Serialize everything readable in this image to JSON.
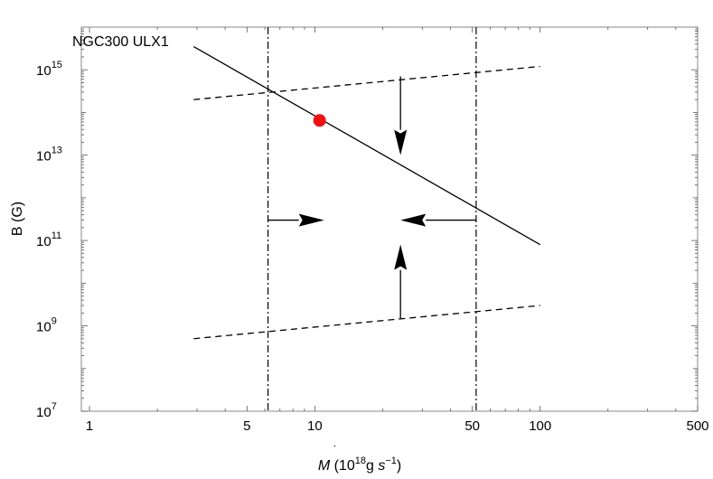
{
  "chart_data": {
    "type": "line",
    "title": "",
    "annotation": "NGC300 ULX1",
    "xlabel": {
      "prefix": "M",
      "open_paren": " (10",
      "exponent": "18",
      "unit_g": "g ",
      "unit_s": "s",
      "unit_exp": "−1",
      "close_paren": ")"
    },
    "ylabel": "B (G)",
    "x_scale": "log",
    "y_scale": "log",
    "xlim": [
      0.92,
      500
    ],
    "ylim": [
      10000000.0,
      1e+16
    ],
    "x_ticks": [
      {
        "value": 1,
        "label": "1"
      },
      {
        "value": 5,
        "label": "5"
      },
      {
        "value": 10,
        "label": "10"
      },
      {
        "value": 50,
        "label": "50"
      },
      {
        "value": 100,
        "label": "100"
      },
      {
        "value": 500,
        "label": "500"
      }
    ],
    "y_ticks": [
      {
        "value": 10000000.0,
        "mant": "10",
        "exp": "7"
      },
      {
        "value": 1000000000.0,
        "mant": "10",
        "exp": "9"
      },
      {
        "value": 100000000000.0,
        "mant": "10",
        "exp": "11"
      },
      {
        "value": 10000000000000.0,
        "mant": "10",
        "exp": "13"
      },
      {
        "value": 1000000000000000.0,
        "mant": "10",
        "exp": "15"
      }
    ],
    "grid": false,
    "series": [
      {
        "style": "solid",
        "x": [
          2.9,
          100
        ],
        "y": [
          3500000000000000.0,
          80000000000.0
        ]
      },
      {
        "style": "dashed",
        "x": [
          2.9,
          100
        ],
        "y": [
          200000000000000.0,
          1200000000000000.0
        ]
      },
      {
        "style": "dashed",
        "x": [
          2.9,
          100
        ],
        "y": [
          500000000.0,
          3000000000.0
        ]
      }
    ],
    "vertical_lines": [
      {
        "style": "dashdot",
        "x": 6.2
      },
      {
        "style": "dashdot",
        "x": 52
      }
    ],
    "point": {
      "x": 10.5,
      "y": 65000000000000.0,
      "color": "#ee1111"
    },
    "arrows": [
      {
        "direction": "down",
        "x": 24,
        "y_from": 700000000000000.0,
        "y_to": 10000000000000.0
      },
      {
        "direction": "up",
        "x": 24,
        "y_from": 1500000000.0,
        "y_to": 80000000000.0
      },
      {
        "direction": "right",
        "y": 300000000000.0,
        "x_from": 6.2,
        "x_to": 11
      },
      {
        "direction": "left",
        "y": 300000000000.0,
        "x_from": 52,
        "x_to": 24
      }
    ],
    "colors": {
      "line": "#000000",
      "point": "#ee1111",
      "frame": "#888888"
    }
  }
}
